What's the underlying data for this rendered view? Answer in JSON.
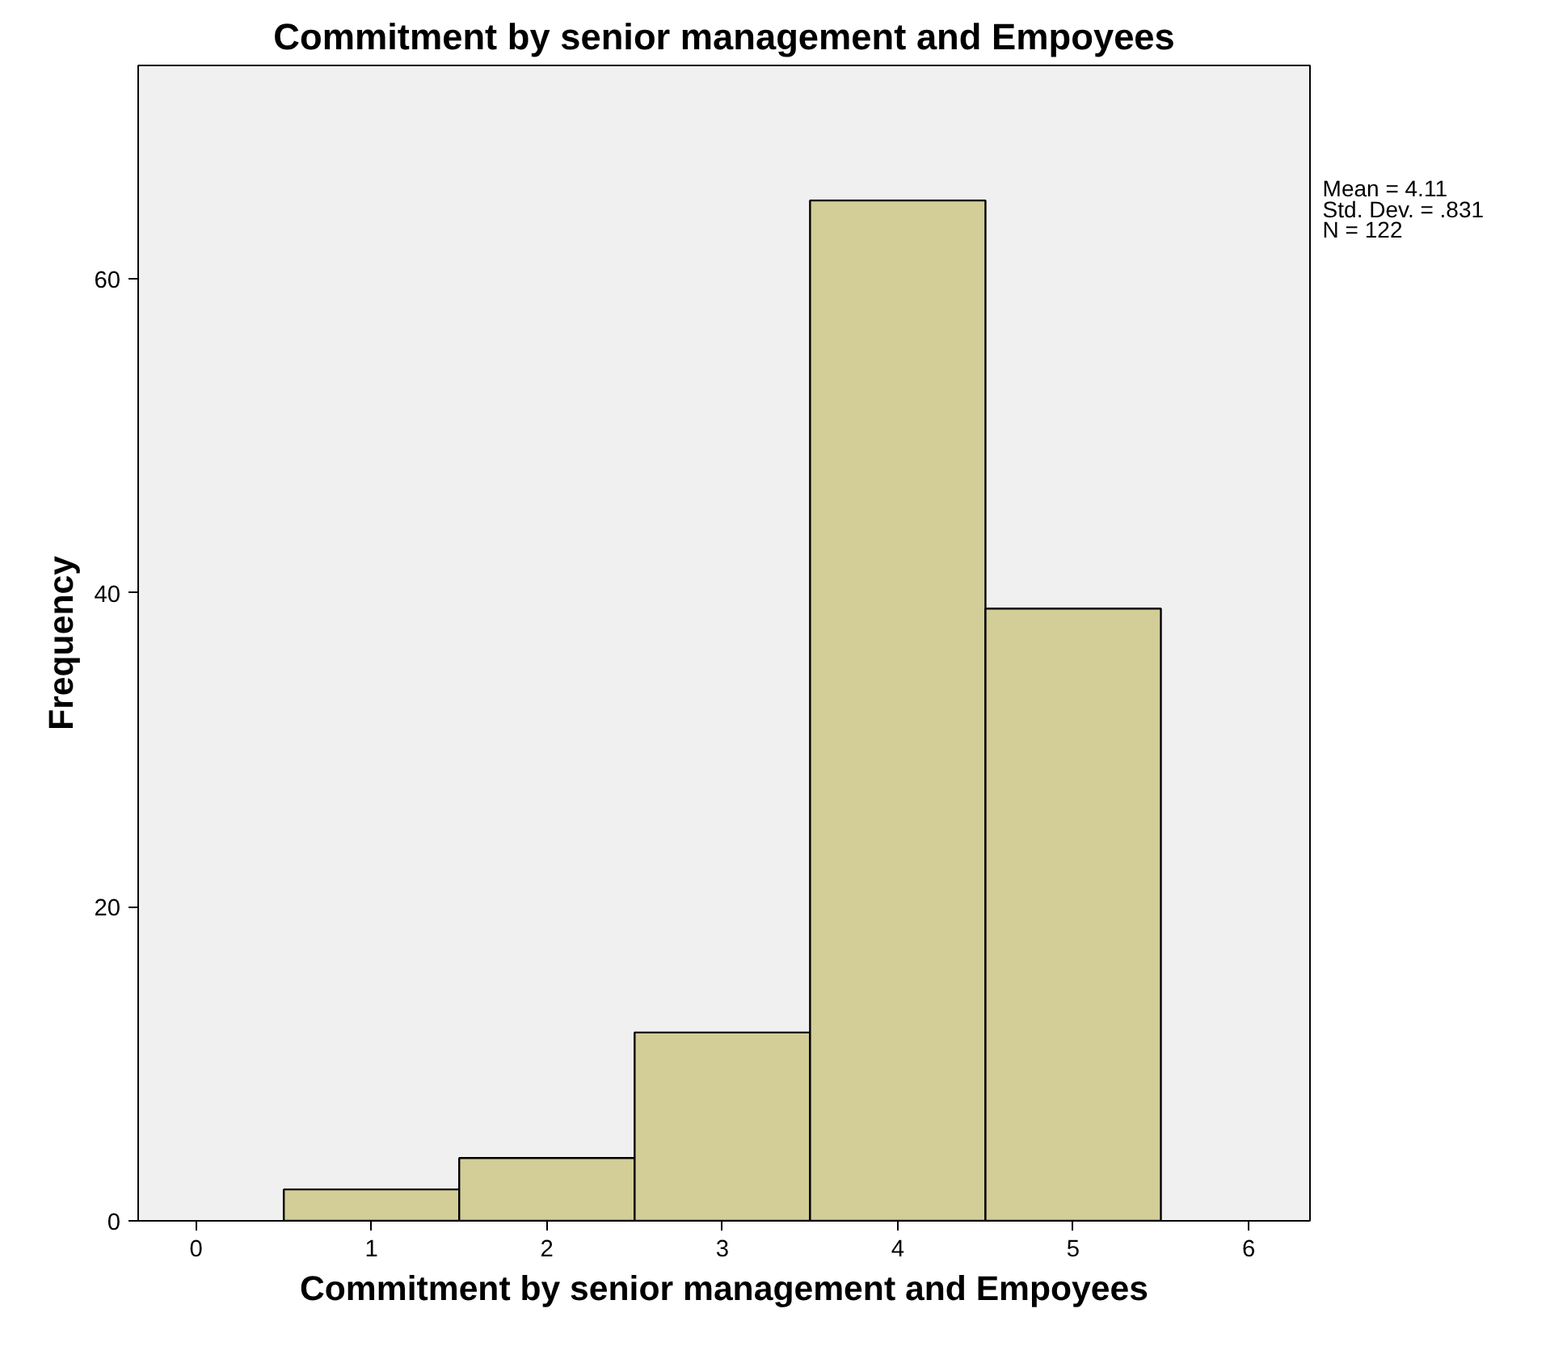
{
  "chart_data": {
    "type": "histogram",
    "title": "Commitment by senior management and Empoyees",
    "xlabel": "Commitment by senior management and Empoyees",
    "ylabel": "Frequency",
    "bins": [
      0.5,
      1.5,
      2.5,
      3.5,
      4.5,
      5.5
    ],
    "values": [
      2,
      4,
      12,
      65,
      39
    ],
    "color": "#d3ce97",
    "xlim": [
      -0.33,
      6.35
    ],
    "ylim": [
      0,
      73.6
    ],
    "xticks": [
      0,
      1,
      2,
      3,
      4,
      5,
      6
    ],
    "yticks": [
      0,
      20,
      40,
      60
    ],
    "annotations": [
      "Mean = 4.11",
      "Std. Dev. = .831",
      "N = 122"
    ]
  }
}
